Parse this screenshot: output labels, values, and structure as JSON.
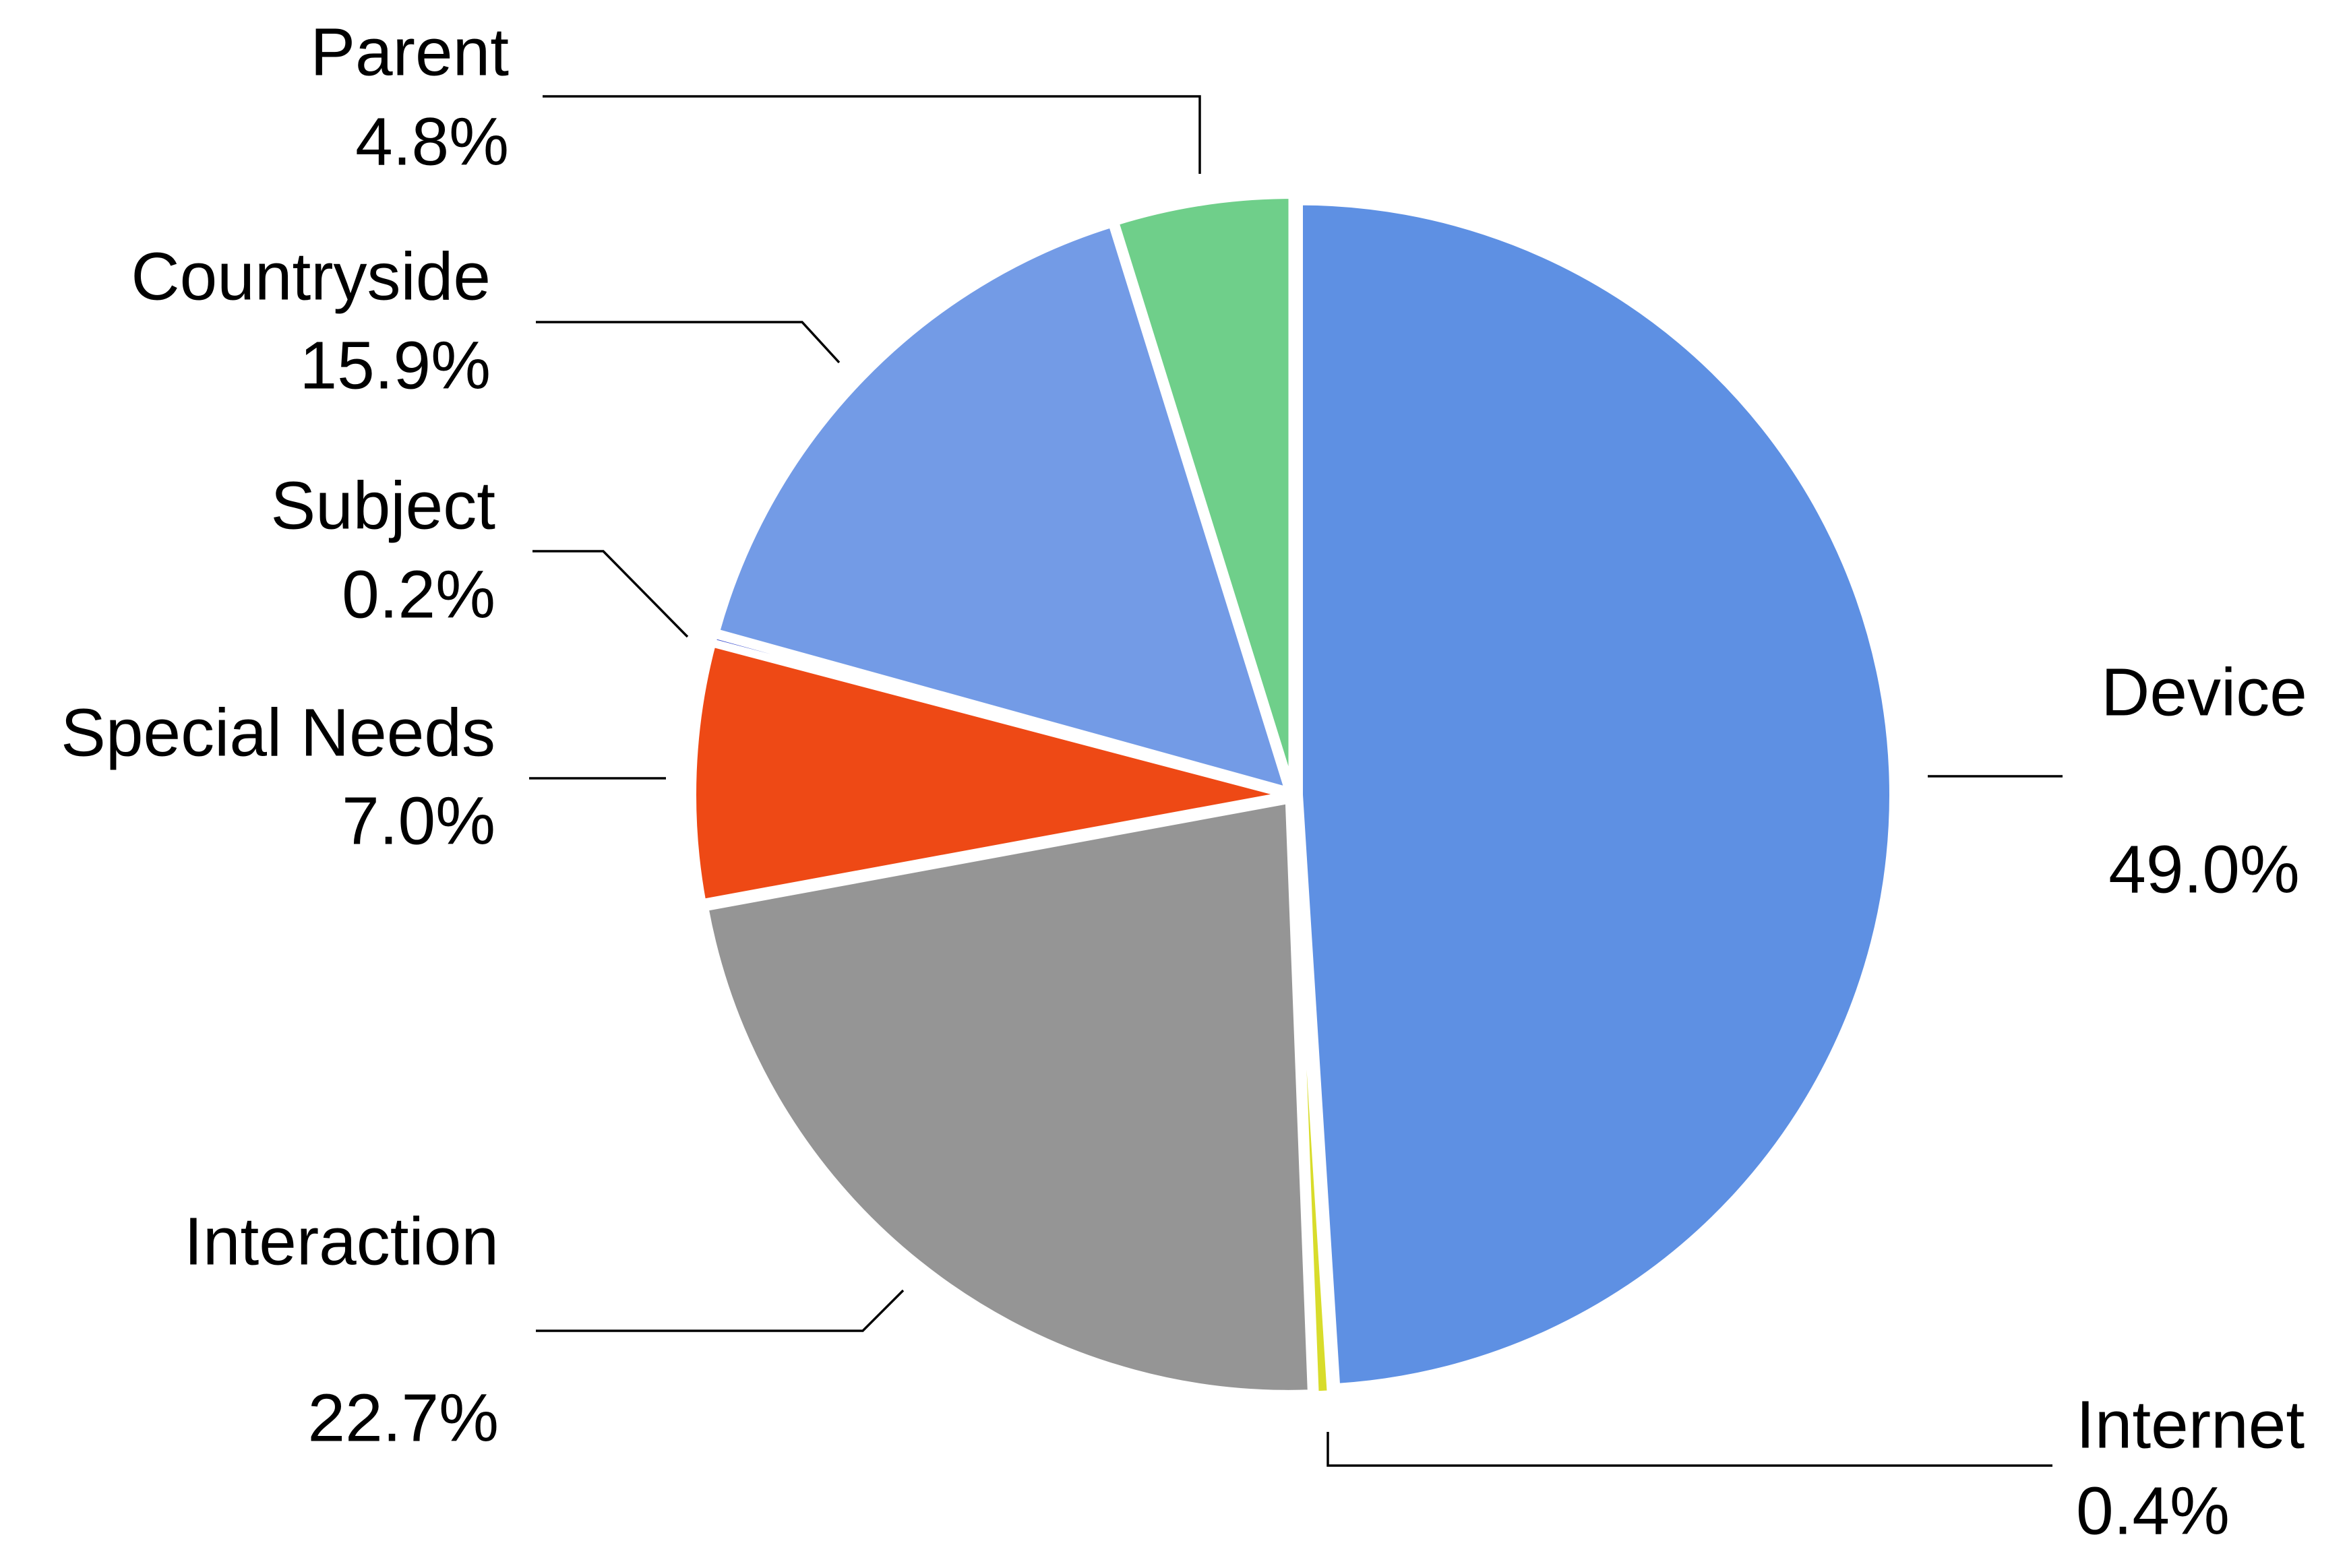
{
  "chart_data": {
    "type": "pie",
    "title": "",
    "slices": [
      {
        "label": "Device",
        "value": 49.0,
        "value_label": "49.0%",
        "color": "#5E90E3"
      },
      {
        "label": "Internet",
        "value": 0.4,
        "value_label": "0.4%",
        "color": "#D8DC2B"
      },
      {
        "label": "Interaction",
        "value": 22.7,
        "value_label": "22.7%",
        "color": "#959595"
      },
      {
        "label": "Special Needs",
        "value": 7.0,
        "value_label": "7.0%",
        "color": "#EE4915"
      },
      {
        "label": "Subject",
        "value": 0.2,
        "value_label": "0.2%",
        "color": "#3C50D0"
      },
      {
        "label": "Countryside",
        "value": 15.9,
        "value_label": "15.9%",
        "color": "#739BE6"
      },
      {
        "label": "Parent",
        "value": 4.8,
        "value_label": "4.8%",
        "color": "#6FCF8A"
      }
    ],
    "start": "12 o'clock",
    "direction": "clockwise",
    "legend": "none",
    "data_labels": "outside with leader lines"
  }
}
